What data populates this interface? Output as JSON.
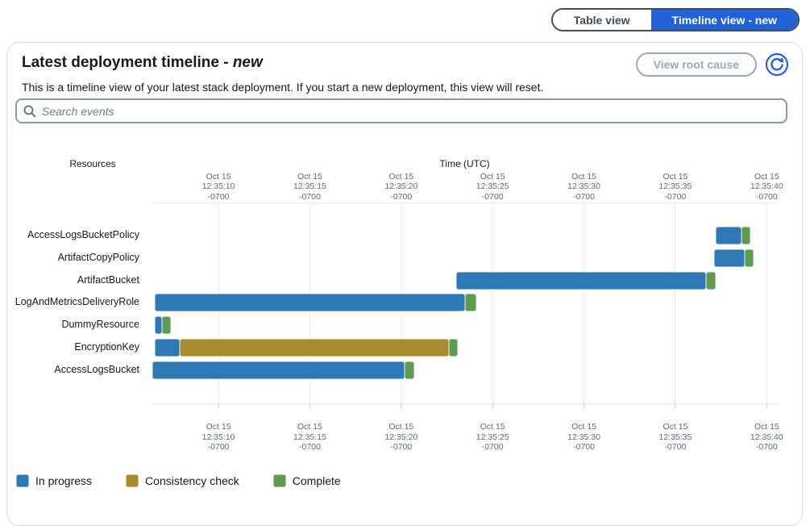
{
  "view_toggle": {
    "table_label": "Table view",
    "timeline_label": "Timeline view - new",
    "selected": "timeline",
    "selected_color": "#2361d6"
  },
  "header": {
    "title_main": "Latest deployment timeline - ",
    "title_emphasis": "new",
    "description": "This is a timeline view of your latest stack deployment. If you start a new deployment, this view will reset.",
    "view_root_cause_label": "View root cause"
  },
  "search": {
    "placeholder": "Search events"
  },
  "chart_data": {
    "type": "timeline-gantt",
    "title": "Latest deployment timeline - new",
    "resources_axis_label": "Resources",
    "time_axis_label": "Time (UTC)",
    "time_base": "Oct 15 12:35 -0700",
    "xlim_seconds": [
      6.38,
      40.56
    ],
    "tick_times_seconds": [
      10,
      15,
      20,
      25,
      30,
      35,
      40
    ],
    "tick_labels": [
      [
        "Oct 15",
        "12:35:10",
        "-0700"
      ],
      [
        "Oct 15",
        "12:35:15",
        "-0700"
      ],
      [
        "Oct 15",
        "12:35:20",
        "-0700"
      ],
      [
        "Oct 15",
        "12:35:25",
        "-0700"
      ],
      [
        "Oct 15",
        "12:35:30",
        "-0700"
      ],
      [
        "Oct 15",
        "12:35:35",
        "-0700"
      ],
      [
        "Oct 15",
        "12:35:40",
        "-0700"
      ]
    ],
    "grid": true,
    "legend_position": "bottom-left",
    "legend": [
      {
        "state": "in_progress",
        "label": "In progress",
        "color": "#2e79b5"
      },
      {
        "state": "consistency_check",
        "label": "Consistency check",
        "color": "#a98b2e"
      },
      {
        "state": "complete",
        "label": "Complete",
        "color": "#5e9a52"
      }
    ],
    "rows": [
      {
        "resource": "AccessLogsBucketPolicy",
        "segments": [
          {
            "state": "in_progress",
            "start": 37.2,
            "end": 38.6
          },
          {
            "state": "complete",
            "start": 38.6,
            "end": 39.1
          }
        ]
      },
      {
        "resource": "ArtifactCopyPolicy",
        "segments": [
          {
            "state": "in_progress",
            "start": 37.1,
            "end": 38.8
          },
          {
            "state": "complete",
            "start": 38.8,
            "end": 39.3
          }
        ]
      },
      {
        "resource": "ArtifactBucket",
        "segments": [
          {
            "state": "in_progress",
            "start": 23.0,
            "end": 36.7
          },
          {
            "state": "complete",
            "start": 36.7,
            "end": 37.2
          }
        ]
      },
      {
        "resource": "LogAndMetricsDeliveryRole",
        "segments": [
          {
            "state": "in_progress",
            "start": 6.5,
            "end": 23.5
          },
          {
            "state": "complete",
            "start": 23.5,
            "end": 24.1
          }
        ]
      },
      {
        "resource": "DummyResource",
        "segments": [
          {
            "state": "in_progress",
            "start": 6.5,
            "end": 6.9
          },
          {
            "state": "complete",
            "start": 6.9,
            "end": 7.4
          }
        ]
      },
      {
        "resource": "EncryptionKey",
        "segments": [
          {
            "state": "in_progress",
            "start": 6.5,
            "end": 7.9
          },
          {
            "state": "consistency_check",
            "start": 7.9,
            "end": 22.6
          },
          {
            "state": "complete",
            "start": 22.6,
            "end": 23.1
          }
        ]
      },
      {
        "resource": "AccessLogsBucket",
        "segments": [
          {
            "state": "in_progress",
            "start": 6.4,
            "end": 20.2
          },
          {
            "state": "complete",
            "start": 20.2,
            "end": 20.7
          }
        ]
      }
    ]
  }
}
